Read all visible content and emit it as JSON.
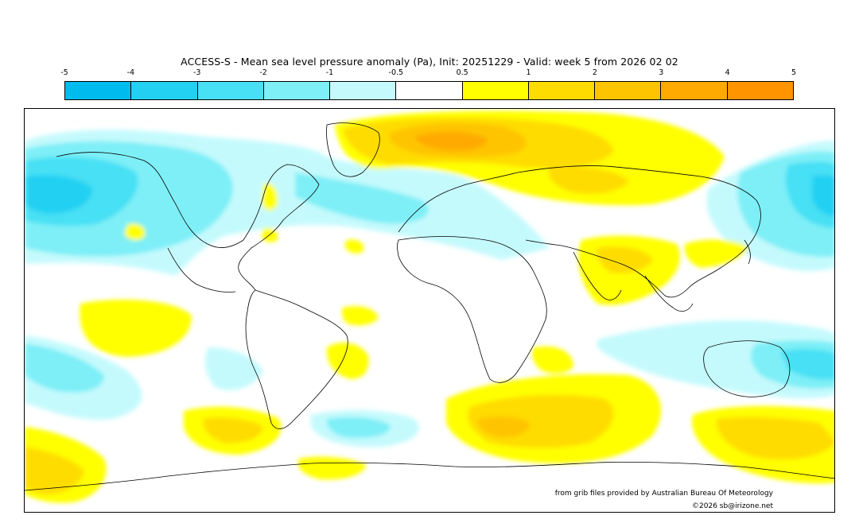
{
  "title": "ACCESS-S - Mean sea level pressure anomaly (Pa), Init: 20251229 - Valid: week 5 from 2026 02 02",
  "colorbar": {
    "ticks": [
      "-5",
      "-4",
      "-3",
      "-2",
      "-1",
      "-0.5",
      "0.5",
      "1",
      "2",
      "3",
      "4",
      "5"
    ],
    "colors": [
      "#00bcee",
      "#23d0f2",
      "#47e0f4",
      "#7eeff7",
      "#c5fafd",
      "#ffffff",
      "#ffff00",
      "#ffdc00",
      "#ffc400",
      "#ffaa00",
      "#ff9400"
    ]
  },
  "credits": {
    "source": "from grib files provided by Australian Bureau Of Meteorology",
    "copyright": "©2026 sb@irizone.net"
  }
}
